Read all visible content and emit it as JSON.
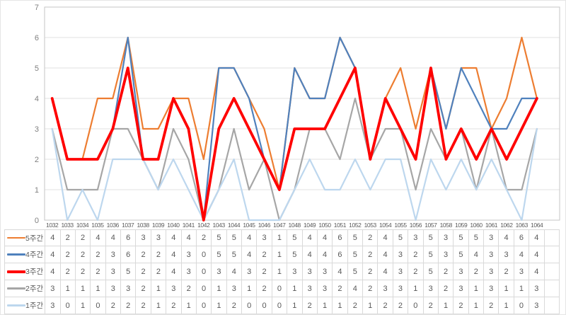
{
  "chart_data": {
    "type": "line",
    "title": "",
    "xlabel": "",
    "ylabel": "",
    "ylim": [
      0,
      7
    ],
    "y_ticks": [
      0,
      1,
      2,
      3,
      4,
      5,
      6,
      7
    ],
    "grid": true,
    "legend_position": "left-of-data-table",
    "has_data_table": true,
    "categories": [
      "1032",
      "1033",
      "1034",
      "1035",
      "1036",
      "1037",
      "1038",
      "1039",
      "1040",
      "1041",
      "1042",
      "1043",
      "1044",
      "1045",
      "1046",
      "1047",
      "1048",
      "1049",
      "1050",
      "1051",
      "1052",
      "1053",
      "1054",
      "1055",
      "1056",
      "1057",
      "1058",
      "1059",
      "1060",
      "1061",
      "1062",
      "1063",
      "1064"
    ],
    "series": [
      {
        "key": "week5",
        "name": "5주간",
        "color": "#ED7D31",
        "line_width": 2.2,
        "swatch_height": 2.5,
        "values": [
          4,
          2,
          2,
          4,
          4,
          6,
          3,
          3,
          4,
          4,
          2,
          5,
          5,
          4,
          3,
          1,
          5,
          4,
          4,
          6,
          5,
          2,
          4,
          5,
          3,
          5,
          3,
          5,
          5,
          3,
          4,
          6,
          4
        ]
      },
      {
        "key": "week4",
        "name": "4주간",
        "color": "#4F81BD",
        "line_width": 2.2,
        "swatch_height": 2.5,
        "values": [
          4,
          2,
          2,
          2,
          3,
          6,
          2,
          2,
          4,
          3,
          0,
          5,
          5,
          4,
          2,
          1,
          5,
          4,
          4,
          6,
          5,
          2,
          4,
          3,
          2,
          5,
          3,
          5,
          4,
          3,
          3,
          4,
          4
        ]
      },
      {
        "key": "week3",
        "name": "3주간",
        "color": "#FF0000",
        "line_width": 3.8,
        "swatch_height": 4,
        "values": [
          4,
          2,
          2,
          2,
          3,
          5,
          2,
          2,
          4,
          3,
          0,
          3,
          4,
          3,
          2,
          1,
          3,
          3,
          3,
          4,
          5,
          2,
          4,
          3,
          2,
          5,
          2,
          3,
          2,
          3,
          2,
          3,
          4
        ]
      },
      {
        "key": "week2",
        "name": "2주간",
        "color": "#A6A6A6",
        "line_width": 2.2,
        "swatch_height": 2.5,
        "values": [
          3,
          1,
          1,
          1,
          3,
          3,
          2,
          1,
          3,
          2,
          0,
          1,
          3,
          1,
          2,
          0,
          1,
          3,
          3,
          2,
          4,
          2,
          3,
          3,
          1,
          3,
          2,
          3,
          1,
          3,
          1,
          1,
          3
        ]
      },
      {
        "key": "week1",
        "name": "1주간",
        "color": "#BDD7EE",
        "line_width": 2.2,
        "swatch_height": 2.5,
        "values": [
          3,
          0,
          1,
          0,
          2,
          2,
          2,
          1,
          2,
          1,
          0,
          1,
          2,
          0,
          0,
          0,
          1,
          2,
          1,
          1,
          2,
          1,
          2,
          2,
          0,
          2,
          1,
          2,
          1,
          2,
          1,
          0,
          3
        ]
      }
    ],
    "draw_order": [
      0,
      1,
      3,
      4,
      2
    ]
  },
  "colors": {
    "gridline": "#e2e2e2",
    "plot_border": "#c6c6c6",
    "axis_label": "#7f7f7f",
    "table_border": "#d9d9d9",
    "table_text": "#595959",
    "background": "#ffffff"
  }
}
